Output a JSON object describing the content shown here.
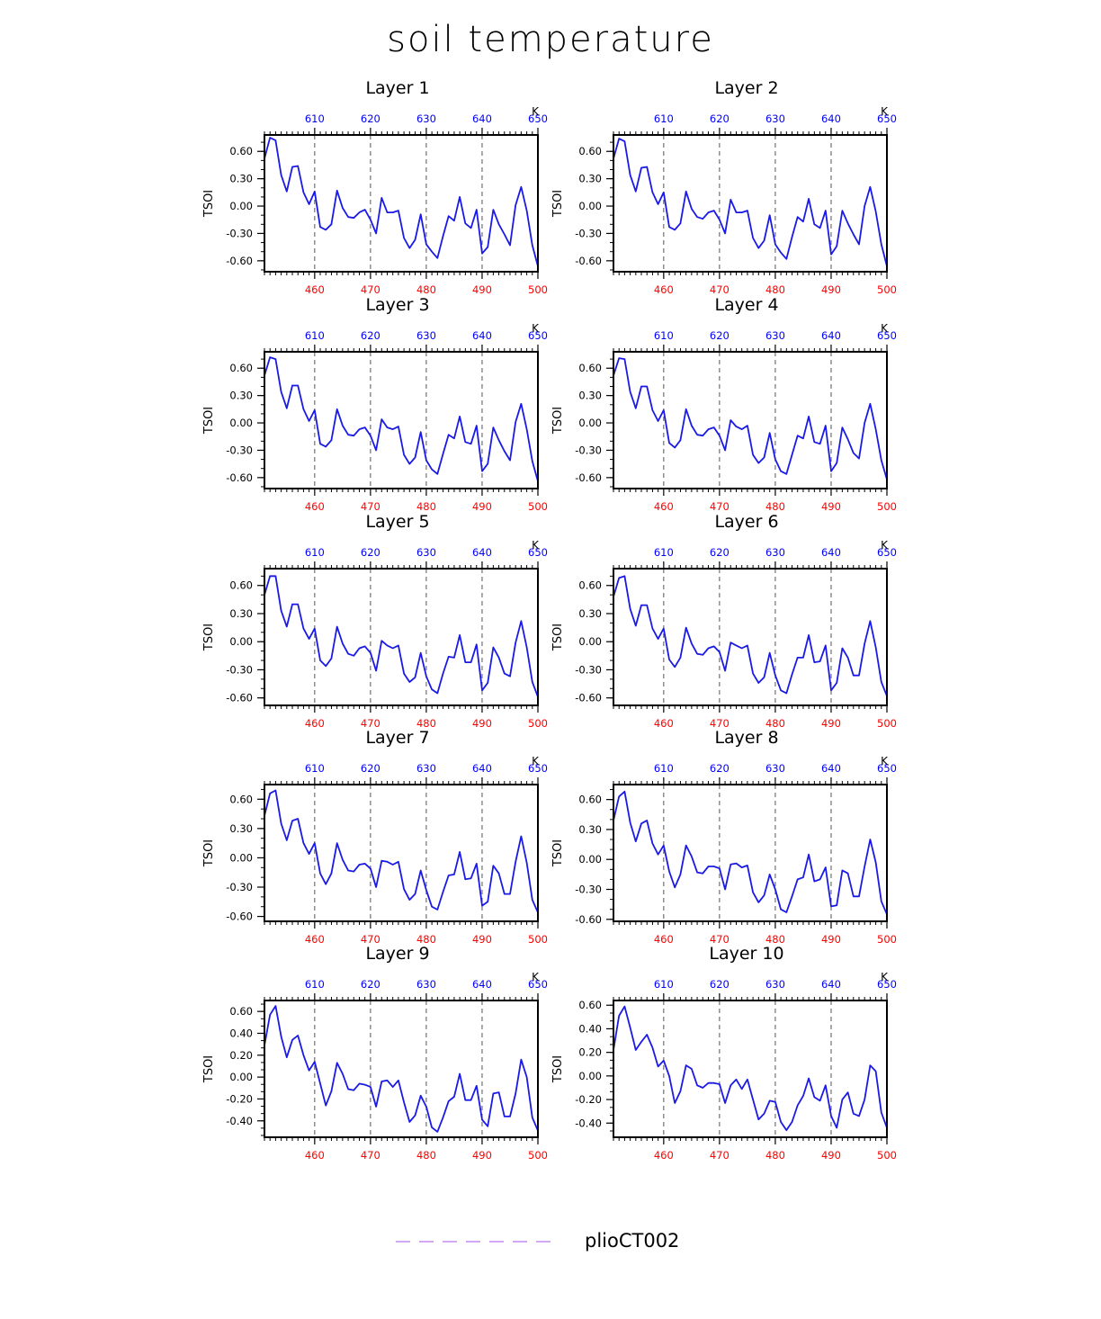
{
  "figure": {
    "title": "soil temperature",
    "legend": {
      "label": "plioCT002",
      "color": "#c58cf0"
    },
    "colors": {
      "series": "#1a1ae6",
      "bottom_ticks": "#ff0000",
      "top_ticks": "#0000ff",
      "grid": "#555555"
    }
  },
  "chart_data": [
    {
      "type": "line",
      "title": "Layer 1",
      "ylabel": "TSOI",
      "xlim": [
        451,
        500
      ],
      "ylim": [
        -0.72,
        0.78
      ],
      "yticks": [
        "0.60",
        "0.30",
        "0.00",
        "-0.30",
        "-0.60"
      ],
      "ytick_values": [
        0.6,
        0.3,
        0,
        -0.3,
        -0.6
      ],
      "xticks_bottom": [
        "460",
        "470",
        "480",
        "490",
        "500"
      ],
      "xticks_top": [
        "610",
        "620",
        "630",
        "640",
        "650"
      ],
      "top_unit": "K",
      "grid": "vertical-dashed",
      "y": [
        0.52,
        0.75,
        0.72,
        0.34,
        0.16,
        0.43,
        0.44,
        0.15,
        0.02,
        0.16,
        -0.23,
        -0.26,
        -0.2,
        0.17,
        -0.02,
        -0.12,
        -0.13,
        -0.07,
        -0.04,
        -0.15,
        -0.3,
        0.09,
        -0.07,
        -0.07,
        -0.05,
        -0.35,
        -0.46,
        -0.37,
        -0.09,
        -0.42,
        -0.5,
        -0.57,
        -0.33,
        -0.11,
        -0.16,
        0.1,
        -0.19,
        -0.24,
        -0.04,
        -0.52,
        -0.45,
        -0.04,
        -0.2,
        -0.31,
        -0.43,
        0.01,
        0.21,
        -0.05,
        -0.43,
        -0.66
      ]
    },
    {
      "type": "line",
      "title": "Layer 2",
      "ylabel": "TSOI",
      "xlim": [
        451,
        500
      ],
      "ylim": [
        -0.72,
        0.78
      ],
      "yticks": [
        "0.60",
        "0.30",
        "0.00",
        "-0.30",
        "-0.60"
      ],
      "ytick_values": [
        0.6,
        0.3,
        0,
        -0.3,
        -0.6
      ],
      "xticks_bottom": [
        "460",
        "470",
        "480",
        "490",
        "500"
      ],
      "xticks_top": [
        "610",
        "620",
        "630",
        "640",
        "650"
      ],
      "top_unit": "K",
      "grid": "vertical-dashed",
      "y": [
        0.52,
        0.74,
        0.71,
        0.34,
        0.16,
        0.42,
        0.43,
        0.15,
        0.02,
        0.15,
        -0.23,
        -0.26,
        -0.19,
        0.16,
        -0.03,
        -0.12,
        -0.14,
        -0.07,
        -0.05,
        -0.15,
        -0.3,
        0.07,
        -0.07,
        -0.07,
        -0.05,
        -0.35,
        -0.46,
        -0.38,
        -0.1,
        -0.42,
        -0.51,
        -0.58,
        -0.34,
        -0.12,
        -0.17,
        0.08,
        -0.2,
        -0.24,
        -0.05,
        -0.53,
        -0.44,
        -0.05,
        -0.19,
        -0.31,
        -0.42,
        0.0,
        0.21,
        -0.06,
        -0.42,
        -0.66
      ]
    },
    {
      "type": "line",
      "title": "Layer 3",
      "ylabel": "TSOI",
      "xlim": [
        451,
        500
      ],
      "ylim": [
        -0.72,
        0.78
      ],
      "yticks": [
        "0.60",
        "0.30",
        "0.00",
        "-0.30",
        "-0.60"
      ],
      "ytick_values": [
        0.6,
        0.3,
        0,
        -0.3,
        -0.6
      ],
      "xticks_bottom": [
        "460",
        "470",
        "480",
        "490",
        "500"
      ],
      "xticks_top": [
        "610",
        "620",
        "630",
        "640",
        "650"
      ],
      "top_unit": "K",
      "grid": "vertical-dashed",
      "y": [
        0.52,
        0.72,
        0.7,
        0.34,
        0.16,
        0.41,
        0.41,
        0.15,
        0.02,
        0.14,
        -0.23,
        -0.26,
        -0.19,
        0.15,
        -0.03,
        -0.13,
        -0.14,
        -0.07,
        -0.05,
        -0.14,
        -0.3,
        0.04,
        -0.05,
        -0.07,
        -0.04,
        -0.35,
        -0.45,
        -0.38,
        -0.1,
        -0.41,
        -0.51,
        -0.56,
        -0.34,
        -0.13,
        -0.17,
        0.07,
        -0.21,
        -0.23,
        -0.03,
        -0.53,
        -0.45,
        -0.05,
        -0.19,
        -0.31,
        -0.41,
        0.01,
        0.21,
        -0.07,
        -0.42,
        -0.64
      ]
    },
    {
      "type": "line",
      "title": "Layer 4",
      "ylabel": "TSOI",
      "xlim": [
        451,
        500
      ],
      "ylim": [
        -0.72,
        0.78
      ],
      "yticks": [
        "0.60",
        "0.30",
        "0.00",
        "-0.30",
        "-0.60"
      ],
      "ytick_values": [
        0.6,
        0.3,
        0,
        -0.3,
        -0.6
      ],
      "xticks_bottom": [
        "460",
        "470",
        "480",
        "490",
        "500"
      ],
      "xticks_top": [
        "610",
        "620",
        "630",
        "640",
        "650"
      ],
      "top_unit": "K",
      "grid": "vertical-dashed",
      "y": [
        0.52,
        0.71,
        0.7,
        0.34,
        0.16,
        0.4,
        0.4,
        0.14,
        0.02,
        0.14,
        -0.22,
        -0.27,
        -0.19,
        0.15,
        -0.03,
        -0.13,
        -0.14,
        -0.07,
        -0.05,
        -0.14,
        -0.3,
        0.03,
        -0.04,
        -0.07,
        -0.03,
        -0.35,
        -0.44,
        -0.38,
        -0.11,
        -0.4,
        -0.53,
        -0.56,
        -0.35,
        -0.14,
        -0.17,
        0.07,
        -0.21,
        -0.23,
        -0.03,
        -0.53,
        -0.44,
        -0.05,
        -0.18,
        -0.33,
        -0.39,
        0.0,
        0.21,
        -0.07,
        -0.41,
        -0.62
      ]
    },
    {
      "type": "line",
      "title": "Layer 5",
      "ylabel": "TSOI",
      "xlim": [
        451,
        500
      ],
      "ylim": [
        -0.68,
        0.78
      ],
      "yticks": [
        "0.60",
        "0.30",
        "0.00",
        "-0.30",
        "-0.60"
      ],
      "ytick_values": [
        0.6,
        0.3,
        0,
        -0.3,
        -0.6
      ],
      "xticks_bottom": [
        "460",
        "470",
        "480",
        "490",
        "500"
      ],
      "xticks_top": [
        "610",
        "620",
        "630",
        "640",
        "650"
      ],
      "top_unit": "K",
      "grid": "vertical-dashed",
      "y": [
        0.5,
        0.7,
        0.7,
        0.33,
        0.16,
        0.4,
        0.4,
        0.14,
        0.03,
        0.14,
        -0.2,
        -0.26,
        -0.18,
        0.16,
        -0.02,
        -0.13,
        -0.15,
        -0.07,
        -0.05,
        -0.12,
        -0.31,
        0.01,
        -0.04,
        -0.07,
        -0.04,
        -0.34,
        -0.43,
        -0.38,
        -0.12,
        -0.37,
        -0.51,
        -0.55,
        -0.34,
        -0.16,
        -0.17,
        0.07,
        -0.22,
        -0.22,
        -0.03,
        -0.52,
        -0.44,
        -0.06,
        -0.17,
        -0.34,
        -0.37,
        -0.01,
        0.22,
        -0.06,
        -0.43,
        -0.59
      ]
    },
    {
      "type": "line",
      "title": "Layer 6",
      "ylabel": "TSOI",
      "xlim": [
        451,
        500
      ],
      "ylim": [
        -0.68,
        0.78
      ],
      "yticks": [
        "0.60",
        "0.30",
        "0.00",
        "-0.30",
        "-0.60"
      ],
      "ytick_values": [
        0.6,
        0.3,
        0,
        -0.3,
        -0.6
      ],
      "xticks_bottom": [
        "460",
        "470",
        "480",
        "490",
        "500"
      ],
      "xticks_top": [
        "610",
        "620",
        "630",
        "640",
        "650"
      ],
      "top_unit": "K",
      "grid": "vertical-dashed",
      "y": [
        0.48,
        0.68,
        0.7,
        0.35,
        0.17,
        0.39,
        0.39,
        0.14,
        0.03,
        0.14,
        -0.19,
        -0.27,
        -0.17,
        0.15,
        -0.02,
        -0.13,
        -0.14,
        -0.07,
        -0.05,
        -0.11,
        -0.31,
        -0.01,
        -0.04,
        -0.07,
        -0.04,
        -0.34,
        -0.44,
        -0.38,
        -0.12,
        -0.36,
        -0.52,
        -0.55,
        -0.35,
        -0.17,
        -0.17,
        0.07,
        -0.22,
        -0.21,
        -0.04,
        -0.52,
        -0.44,
        -0.07,
        -0.17,
        -0.36,
        -0.36,
        -0.02,
        0.22,
        -0.06,
        -0.43,
        -0.58
      ]
    },
    {
      "type": "line",
      "title": "Layer 7",
      "ylabel": "TSOI",
      "xlim": [
        451,
        500
      ],
      "ylim": [
        -0.65,
        0.75
      ],
      "yticks": [
        "0.60",
        "0.30",
        "0.00",
        "-0.30",
        "-0.60"
      ],
      "ytick_values": [
        0.6,
        0.3,
        0,
        -0.3,
        -0.6
      ],
      "xticks_bottom": [
        "460",
        "470",
        "480",
        "490",
        "500"
      ],
      "xticks_top": [
        "610",
        "620",
        "630",
        "640",
        "650"
      ],
      "top_unit": "K",
      "grid": "vertical-dashed",
      "y": [
        0.43,
        0.66,
        0.69,
        0.35,
        0.18,
        0.38,
        0.4,
        0.15,
        0.04,
        0.15,
        -0.16,
        -0.27,
        -0.16,
        0.15,
        -0.02,
        -0.13,
        -0.14,
        -0.07,
        -0.06,
        -0.11,
        -0.3,
        -0.03,
        -0.04,
        -0.07,
        -0.04,
        -0.32,
        -0.43,
        -0.37,
        -0.13,
        -0.33,
        -0.5,
        -0.53,
        -0.35,
        -0.18,
        -0.17,
        0.06,
        -0.22,
        -0.21,
        -0.06,
        -0.49,
        -0.45,
        -0.08,
        -0.16,
        -0.37,
        -0.37,
        -0.04,
        0.22,
        -0.05,
        -0.43,
        -0.56
      ]
    },
    {
      "type": "line",
      "title": "Layer 8",
      "ylabel": "TSOI",
      "xlim": [
        451,
        500
      ],
      "ylim": [
        -0.62,
        0.75
      ],
      "yticks": [
        "0.60",
        "0.30",
        "0.00",
        "-0.30",
        "-0.60"
      ],
      "ytick_values": [
        0.6,
        0.3,
        0,
        -0.3,
        -0.6
      ],
      "xticks_bottom": [
        "460",
        "470",
        "480",
        "490",
        "500"
      ],
      "xticks_top": [
        "610",
        "620",
        "630",
        "640",
        "650"
      ],
      "top_unit": "K",
      "grid": "vertical-dashed",
      "y": [
        0.39,
        0.63,
        0.68,
        0.37,
        0.18,
        0.36,
        0.39,
        0.16,
        0.05,
        0.14,
        -0.12,
        -0.28,
        -0.15,
        0.14,
        0.03,
        -0.13,
        -0.14,
        -0.07,
        -0.07,
        -0.09,
        -0.3,
        -0.05,
        -0.04,
        -0.08,
        -0.06,
        -0.33,
        -0.43,
        -0.36,
        -0.15,
        -0.3,
        -0.5,
        -0.53,
        -0.37,
        -0.2,
        -0.18,
        0.05,
        -0.22,
        -0.2,
        -0.08,
        -0.47,
        -0.46,
        -0.11,
        -0.14,
        -0.37,
        -0.37,
        -0.07,
        0.2,
        -0.03,
        -0.42,
        -0.55
      ]
    },
    {
      "type": "line",
      "title": "Layer 9",
      "ylabel": "TSOI",
      "xlim": [
        451,
        500
      ],
      "ylim": [
        -0.55,
        0.7
      ],
      "yticks": [
        "0.60",
        "0.40",
        "0.20",
        "0.00",
        "-0.20",
        "-0.40"
      ],
      "ytick_values": [
        0.6,
        0.4,
        0.2,
        0,
        -0.2,
        -0.4
      ],
      "xticks_bottom": [
        "460",
        "470",
        "480",
        "490",
        "500"
      ],
      "xticks_top": [
        "610",
        "620",
        "630",
        "640",
        "650"
      ],
      "top_unit": "K",
      "grid": "vertical-dashed",
      "y": [
        0.29,
        0.57,
        0.65,
        0.37,
        0.18,
        0.34,
        0.38,
        0.2,
        0.06,
        0.14,
        -0.06,
        -0.26,
        -0.13,
        0.13,
        0.03,
        -0.11,
        -0.12,
        -0.06,
        -0.07,
        -0.09,
        -0.27,
        -0.04,
        -0.03,
        -0.09,
        -0.03,
        -0.23,
        -0.41,
        -0.35,
        -0.17,
        -0.27,
        -0.46,
        -0.5,
        -0.37,
        -0.22,
        -0.18,
        0.03,
        -0.21,
        -0.21,
        -0.08,
        -0.39,
        -0.45,
        -0.15,
        -0.14,
        -0.36,
        -0.36,
        -0.15,
        0.16,
        0.0,
        -0.37,
        -0.49
      ]
    },
    {
      "type": "line",
      "title": "Layer 10",
      "ylabel": "TSOI",
      "xlim": [
        451,
        500
      ],
      "ylim": [
        -0.52,
        0.64
      ],
      "yticks": [
        "0.60",
        "0.40",
        "0.20",
        "0.00",
        "-0.20",
        "-0.40"
      ],
      "ytick_values": [
        0.6,
        0.4,
        0.2,
        0,
        -0.2,
        -0.4
      ],
      "xticks_bottom": [
        "460",
        "470",
        "480",
        "490",
        "500"
      ],
      "xticks_top": [
        "610",
        "620",
        "630",
        "640",
        "650"
      ],
      "top_unit": "K",
      "grid": "vertical-dashed",
      "y": [
        0.22,
        0.51,
        0.59,
        0.41,
        0.22,
        0.29,
        0.35,
        0.24,
        0.08,
        0.13,
        0.0,
        -0.23,
        -0.13,
        0.09,
        0.06,
        -0.08,
        -0.1,
        -0.06,
        -0.06,
        -0.07,
        -0.23,
        -0.08,
        -0.03,
        -0.11,
        -0.03,
        -0.2,
        -0.37,
        -0.32,
        -0.21,
        -0.22,
        -0.39,
        -0.46,
        -0.39,
        -0.25,
        -0.17,
        -0.02,
        -0.18,
        -0.21,
        -0.08,
        -0.34,
        -0.44,
        -0.2,
        -0.14,
        -0.32,
        -0.34,
        -0.2,
        0.09,
        0.04,
        -0.31,
        -0.44
      ]
    }
  ]
}
